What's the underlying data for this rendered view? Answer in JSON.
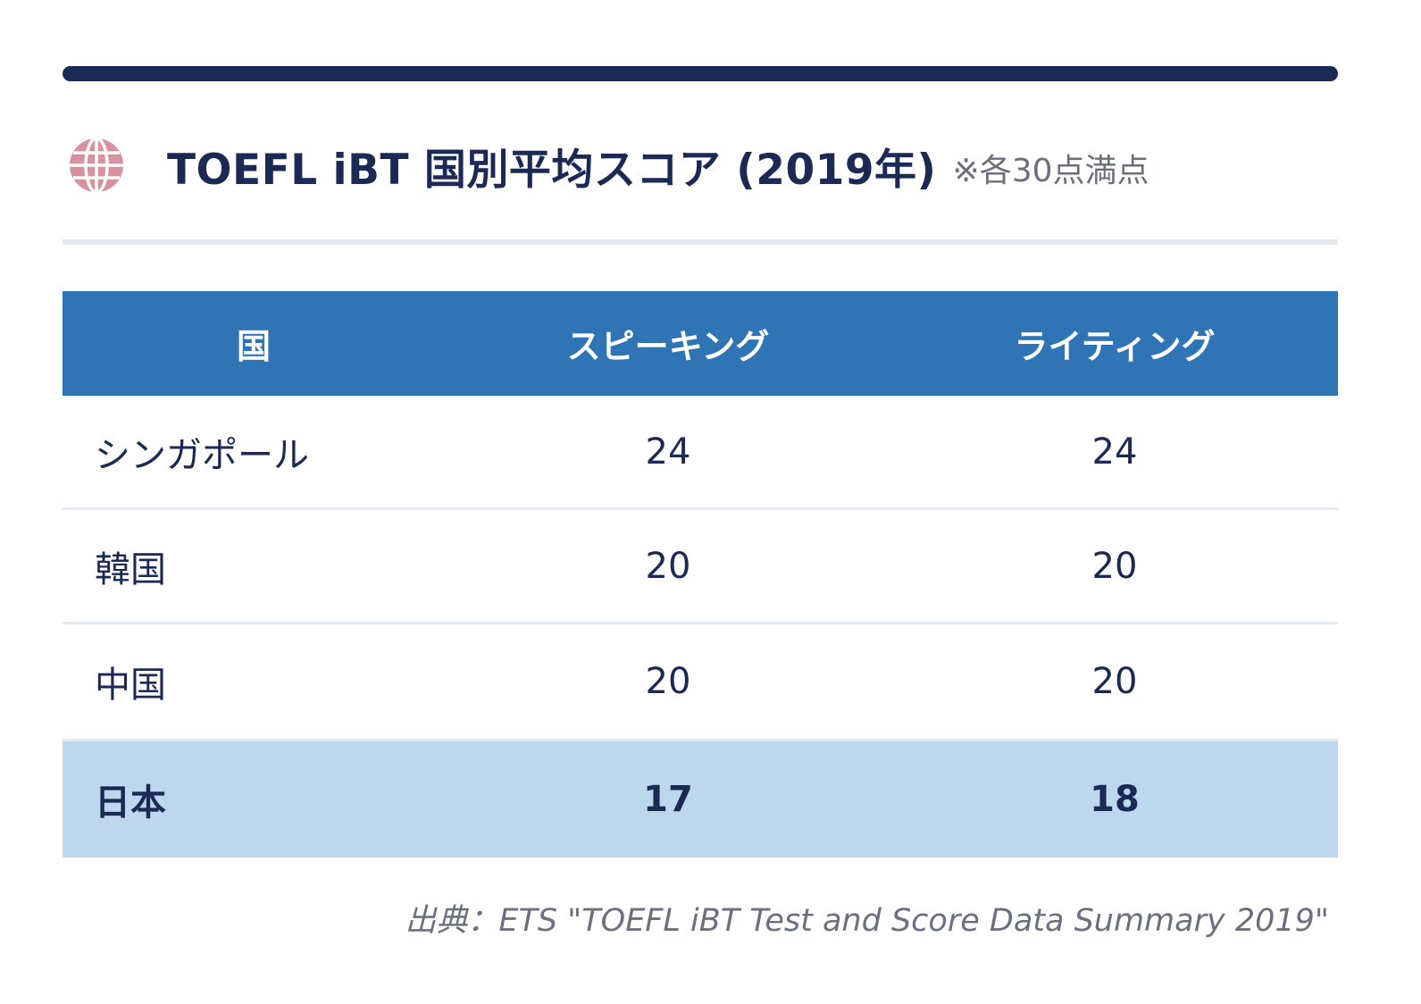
{
  "header": {
    "title": "TOEFL iBT 国別平均スコア (2019年)",
    "note": "※各30点満点",
    "icon": "globe-icon"
  },
  "table": {
    "columns": [
      "国",
      "スピーキング",
      "ライティング"
    ],
    "rows": [
      {
        "country": "シンガポール",
        "speaking": "24",
        "writing": "24"
      },
      {
        "country": "韓国",
        "speaking": "20",
        "writing": "20"
      },
      {
        "country": "中国",
        "speaking": "20",
        "writing": "20"
      },
      {
        "country": "日本",
        "speaking": "17",
        "writing": "18"
      }
    ]
  },
  "source": "出典：ETS \"TOEFL iBT Test and Score Data Summary 2019\"",
  "colors": {
    "primary": "#1b2a55",
    "header_bg": "#2f75b6",
    "highlight_bg": "#bdd7ee",
    "icon": "#d9909f"
  }
}
